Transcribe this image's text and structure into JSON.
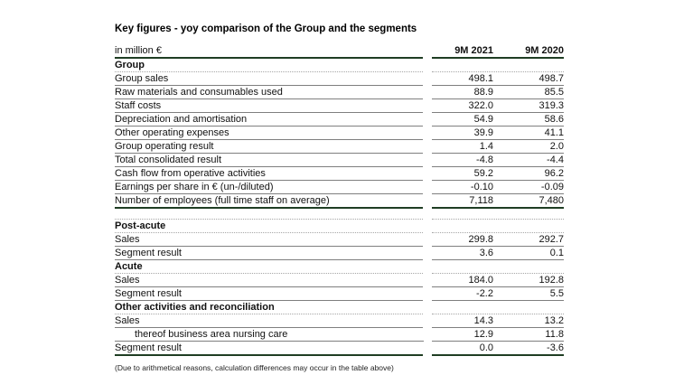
{
  "title": "Key figures - yoy comparison of the Group and the segments",
  "footnote": "(Due to arithmetical reasons, calculation differences may occur in the table above)",
  "colors": {
    "section_line_green": "#1f3d23",
    "row_line_gray": "#7f7f7f",
    "header_dotted_gray": "#a6a6a6"
  },
  "table": {
    "unit_label": "in million €",
    "columns": [
      "9M 2021",
      "9M 2020"
    ],
    "sections": [
      {
        "header": "Group",
        "end_border": "green",
        "rows": [
          {
            "label": "Group sales",
            "values": [
              "498.1",
              "498.7"
            ]
          },
          {
            "label": "Raw materials and consumables used",
            "values": [
              "88.9",
              "85.5"
            ]
          },
          {
            "label": "Staff costs",
            "values": [
              "322.0",
              "319.3"
            ]
          },
          {
            "label": "Depreciation and amortisation",
            "values": [
              "54.9",
              "58.6"
            ]
          },
          {
            "label": "Other operating expenses",
            "values": [
              "39.9",
              "41.1"
            ]
          },
          {
            "label": "Group operating result",
            "values": [
              "1.4",
              "2.0"
            ]
          },
          {
            "label": "Total consolidated result",
            "values": [
              "-4.8",
              "-4.4"
            ]
          },
          {
            "label": "Cash flow from operative activities",
            "values": [
              "59.2",
              "96.2"
            ]
          },
          {
            "label": "Earnings per share in € (un-/diluted)",
            "values": [
              "-0.10",
              "-0.09"
            ]
          },
          {
            "label": "Number of employees  (full time staff on average)",
            "values": [
              "7,118",
              "7,480"
            ]
          }
        ]
      },
      {
        "header": "Post-acute",
        "gap_before": true,
        "rows": [
          {
            "label": "Sales",
            "values": [
              "299.8",
              "292.7"
            ]
          },
          {
            "label": "Segment result",
            "values": [
              "3.6",
              "0.1"
            ]
          }
        ]
      },
      {
        "header": "Acute",
        "rows": [
          {
            "label": "Sales",
            "values": [
              "184.0",
              "192.8"
            ]
          },
          {
            "label": "Segment result",
            "values": [
              "-2.2",
              "5.5"
            ]
          }
        ]
      },
      {
        "header": "Other activities and reconciliation",
        "end_border": "green",
        "rows": [
          {
            "label": "Sales",
            "values": [
              "14.3",
              "13.2"
            ]
          },
          {
            "label": "thereof business area nursing care",
            "indent": true,
            "values": [
              "12.9",
              "11.8"
            ]
          },
          {
            "label": "Segment result",
            "values": [
              "0.0",
              "-3.6"
            ]
          }
        ]
      }
    ]
  }
}
